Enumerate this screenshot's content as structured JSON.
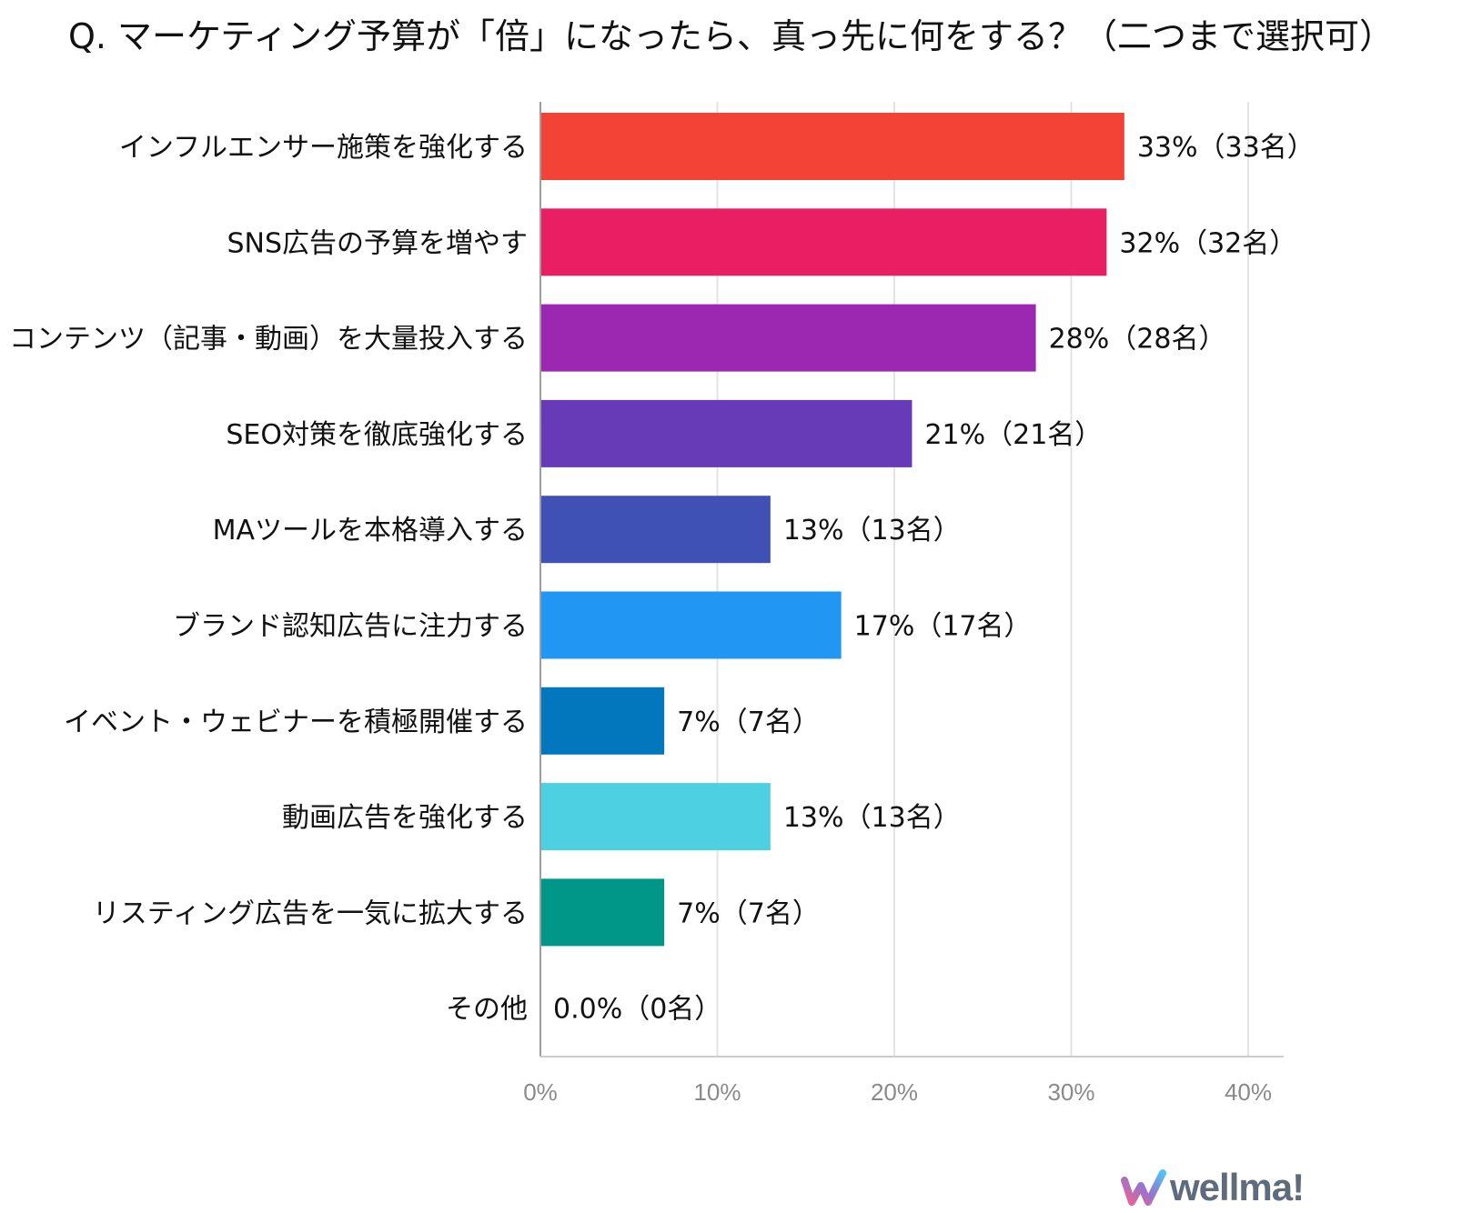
{
  "chart_data": {
    "type": "bar",
    "orientation": "horizontal",
    "title": "Q. マーケティング予算が「倍」になったら、真っ先に何をする？（二つまで選択可）",
    "xlabel": "",
    "ylabel": "",
    "xlim": [
      0,
      40
    ],
    "x_ticks": [
      "0%",
      "10%",
      "20%",
      "30%",
      "40%"
    ],
    "grid": true,
    "categories": [
      "インフルエンサー施策を強化する",
      "SNS広告の予算を増やす",
      "コンテンツ（記事・動画）を大量投入する",
      "SEO対策を徹底強化する",
      "MAツールを本格導入する",
      "ブランド認知広告に注力する",
      "イベント・ウェビナーを積極開催する",
      "動画広告を強化する",
      "リスティング広告を一気に拡大する",
      "その他"
    ],
    "values": [
      33,
      32,
      28,
      21,
      13,
      17,
      7,
      13,
      7,
      0
    ],
    "data_labels": [
      "33%（33名）",
      "32%（32名）",
      "28%（28名）",
      "21%（21名）",
      "13%（13名）",
      "17%（17名）",
      "7%（7名）",
      "13%（13名）",
      "7%（7名）",
      "0.0%（0名）"
    ],
    "colors": [
      "#f34336",
      "#e91e63",
      "#9c27b0",
      "#673ab7",
      "#3f51b5",
      "#2196f3",
      "#0277bd",
      "#4dd0e1",
      "#009688",
      "#9e9e9e"
    ]
  },
  "brand": {
    "name": "wellma!",
    "color": "#5d6b7a"
  }
}
